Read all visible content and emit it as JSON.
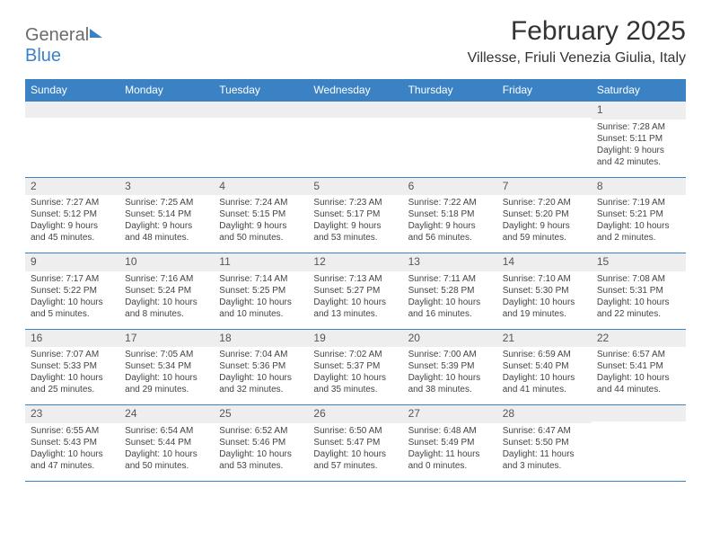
{
  "brand": {
    "part1": "General",
    "part2": "Blue"
  },
  "title": "February 2025",
  "location": "Villesse, Friuli Venezia Giulia, Italy",
  "colors": {
    "header_bg": "#3b82c4",
    "header_text": "#ffffff",
    "daynum_bg": "#eeeeee",
    "text": "#333333",
    "border": "#3b82c4"
  },
  "day_labels": [
    "Sunday",
    "Monday",
    "Tuesday",
    "Wednesday",
    "Thursday",
    "Friday",
    "Saturday"
  ],
  "weeks": [
    [
      {
        "n": "",
        "sr": "",
        "ss": "",
        "dl": ""
      },
      {
        "n": "",
        "sr": "",
        "ss": "",
        "dl": ""
      },
      {
        "n": "",
        "sr": "",
        "ss": "",
        "dl": ""
      },
      {
        "n": "",
        "sr": "",
        "ss": "",
        "dl": ""
      },
      {
        "n": "",
        "sr": "",
        "ss": "",
        "dl": ""
      },
      {
        "n": "",
        "sr": "",
        "ss": "",
        "dl": ""
      },
      {
        "n": "1",
        "sr": "Sunrise: 7:28 AM",
        "ss": "Sunset: 5:11 PM",
        "dl": "Daylight: 9 hours and 42 minutes."
      }
    ],
    [
      {
        "n": "2",
        "sr": "Sunrise: 7:27 AM",
        "ss": "Sunset: 5:12 PM",
        "dl": "Daylight: 9 hours and 45 minutes."
      },
      {
        "n": "3",
        "sr": "Sunrise: 7:25 AM",
        "ss": "Sunset: 5:14 PM",
        "dl": "Daylight: 9 hours and 48 minutes."
      },
      {
        "n": "4",
        "sr": "Sunrise: 7:24 AM",
        "ss": "Sunset: 5:15 PM",
        "dl": "Daylight: 9 hours and 50 minutes."
      },
      {
        "n": "5",
        "sr": "Sunrise: 7:23 AM",
        "ss": "Sunset: 5:17 PM",
        "dl": "Daylight: 9 hours and 53 minutes."
      },
      {
        "n": "6",
        "sr": "Sunrise: 7:22 AM",
        "ss": "Sunset: 5:18 PM",
        "dl": "Daylight: 9 hours and 56 minutes."
      },
      {
        "n": "7",
        "sr": "Sunrise: 7:20 AM",
        "ss": "Sunset: 5:20 PM",
        "dl": "Daylight: 9 hours and 59 minutes."
      },
      {
        "n": "8",
        "sr": "Sunrise: 7:19 AM",
        "ss": "Sunset: 5:21 PM",
        "dl": "Daylight: 10 hours and 2 minutes."
      }
    ],
    [
      {
        "n": "9",
        "sr": "Sunrise: 7:17 AM",
        "ss": "Sunset: 5:22 PM",
        "dl": "Daylight: 10 hours and 5 minutes."
      },
      {
        "n": "10",
        "sr": "Sunrise: 7:16 AM",
        "ss": "Sunset: 5:24 PM",
        "dl": "Daylight: 10 hours and 8 minutes."
      },
      {
        "n": "11",
        "sr": "Sunrise: 7:14 AM",
        "ss": "Sunset: 5:25 PM",
        "dl": "Daylight: 10 hours and 10 minutes."
      },
      {
        "n": "12",
        "sr": "Sunrise: 7:13 AM",
        "ss": "Sunset: 5:27 PM",
        "dl": "Daylight: 10 hours and 13 minutes."
      },
      {
        "n": "13",
        "sr": "Sunrise: 7:11 AM",
        "ss": "Sunset: 5:28 PM",
        "dl": "Daylight: 10 hours and 16 minutes."
      },
      {
        "n": "14",
        "sr": "Sunrise: 7:10 AM",
        "ss": "Sunset: 5:30 PM",
        "dl": "Daylight: 10 hours and 19 minutes."
      },
      {
        "n": "15",
        "sr": "Sunrise: 7:08 AM",
        "ss": "Sunset: 5:31 PM",
        "dl": "Daylight: 10 hours and 22 minutes."
      }
    ],
    [
      {
        "n": "16",
        "sr": "Sunrise: 7:07 AM",
        "ss": "Sunset: 5:33 PM",
        "dl": "Daylight: 10 hours and 25 minutes."
      },
      {
        "n": "17",
        "sr": "Sunrise: 7:05 AM",
        "ss": "Sunset: 5:34 PM",
        "dl": "Daylight: 10 hours and 29 minutes."
      },
      {
        "n": "18",
        "sr": "Sunrise: 7:04 AM",
        "ss": "Sunset: 5:36 PM",
        "dl": "Daylight: 10 hours and 32 minutes."
      },
      {
        "n": "19",
        "sr": "Sunrise: 7:02 AM",
        "ss": "Sunset: 5:37 PM",
        "dl": "Daylight: 10 hours and 35 minutes."
      },
      {
        "n": "20",
        "sr": "Sunrise: 7:00 AM",
        "ss": "Sunset: 5:39 PM",
        "dl": "Daylight: 10 hours and 38 minutes."
      },
      {
        "n": "21",
        "sr": "Sunrise: 6:59 AM",
        "ss": "Sunset: 5:40 PM",
        "dl": "Daylight: 10 hours and 41 minutes."
      },
      {
        "n": "22",
        "sr": "Sunrise: 6:57 AM",
        "ss": "Sunset: 5:41 PM",
        "dl": "Daylight: 10 hours and 44 minutes."
      }
    ],
    [
      {
        "n": "23",
        "sr": "Sunrise: 6:55 AM",
        "ss": "Sunset: 5:43 PM",
        "dl": "Daylight: 10 hours and 47 minutes."
      },
      {
        "n": "24",
        "sr": "Sunrise: 6:54 AM",
        "ss": "Sunset: 5:44 PM",
        "dl": "Daylight: 10 hours and 50 minutes."
      },
      {
        "n": "25",
        "sr": "Sunrise: 6:52 AM",
        "ss": "Sunset: 5:46 PM",
        "dl": "Daylight: 10 hours and 53 minutes."
      },
      {
        "n": "26",
        "sr": "Sunrise: 6:50 AM",
        "ss": "Sunset: 5:47 PM",
        "dl": "Daylight: 10 hours and 57 minutes."
      },
      {
        "n": "27",
        "sr": "Sunrise: 6:48 AM",
        "ss": "Sunset: 5:49 PM",
        "dl": "Daylight: 11 hours and 0 minutes."
      },
      {
        "n": "28",
        "sr": "Sunrise: 6:47 AM",
        "ss": "Sunset: 5:50 PM",
        "dl": "Daylight: 11 hours and 3 minutes."
      },
      {
        "n": "",
        "sr": "",
        "ss": "",
        "dl": ""
      }
    ]
  ]
}
